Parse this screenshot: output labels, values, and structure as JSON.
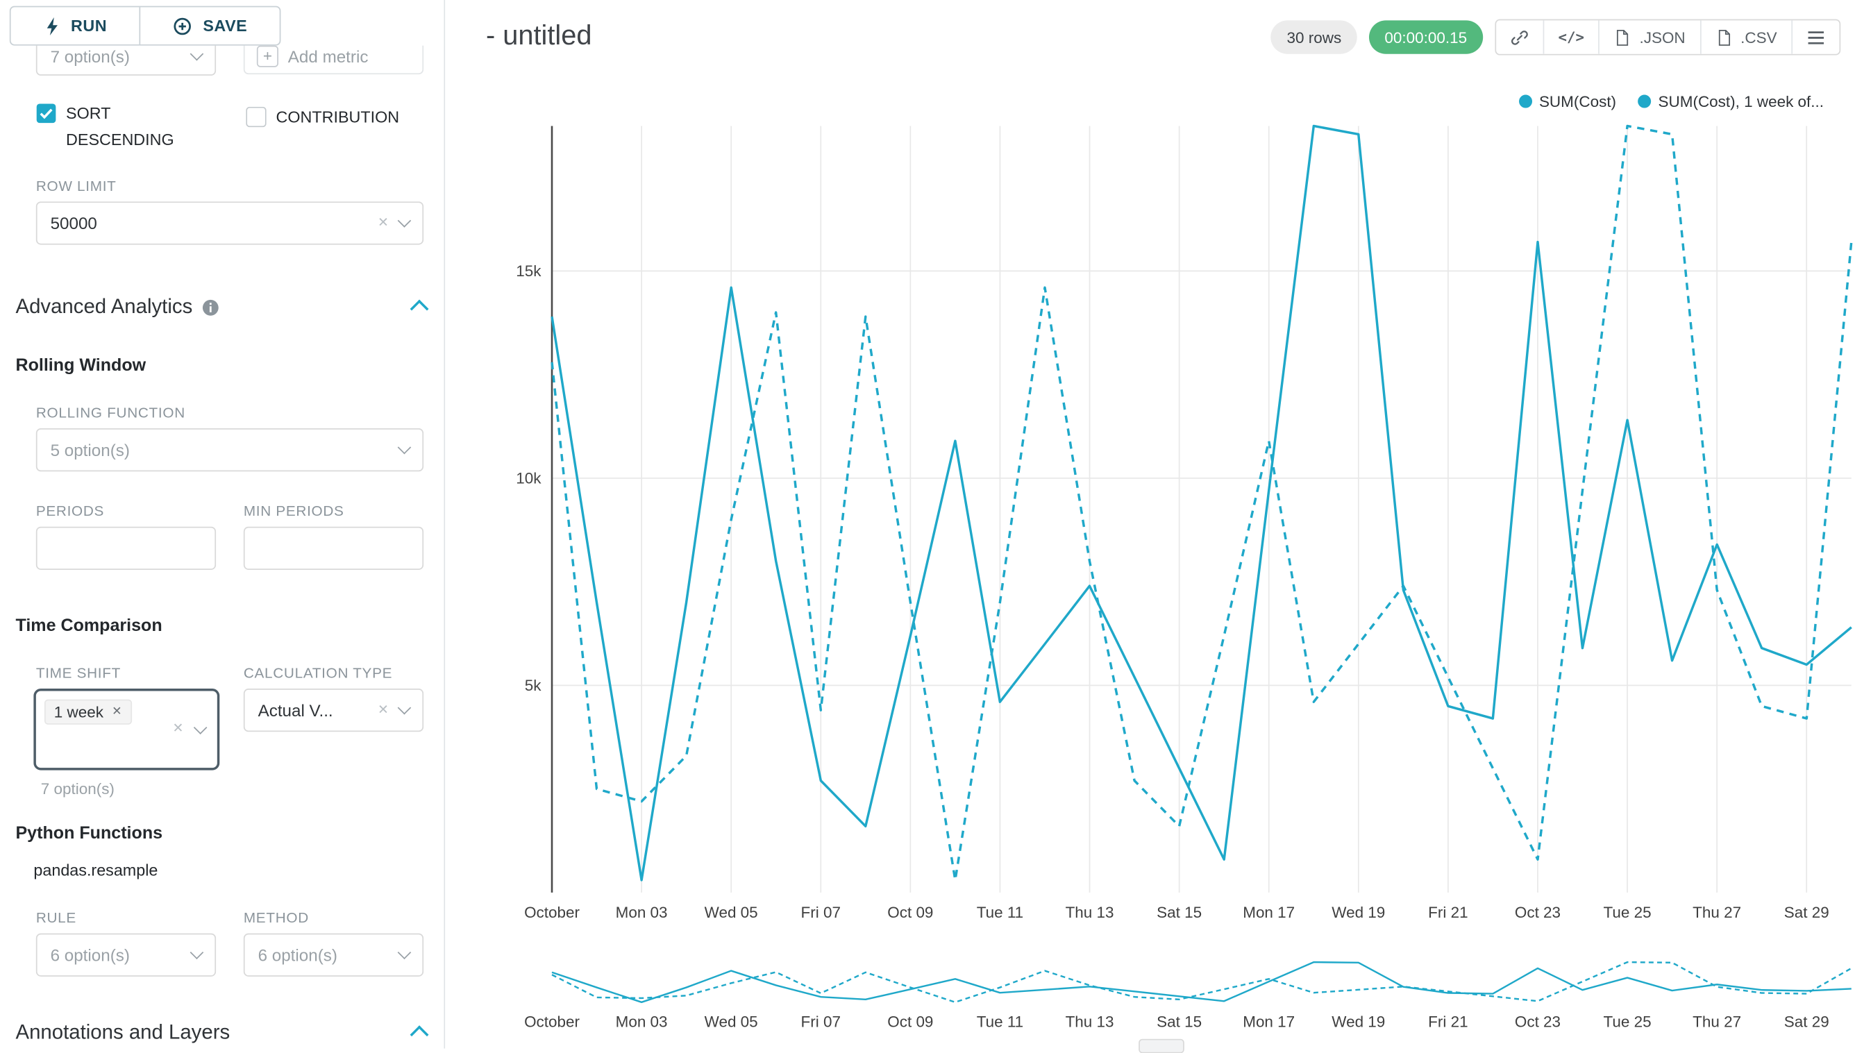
{
  "sidebar": {
    "run": "RUN",
    "save": "SAVE",
    "metric_select_placeholder": "7 option(s)",
    "add_metric_label": "Add metric",
    "sort_descending_label": "SORT DESCENDING",
    "contribution_label": "CONTRIBUTION",
    "row_limit_label": "ROW LIMIT",
    "row_limit_value": "50000",
    "advanced_analytics_title": "Advanced Analytics",
    "rolling_window_title": "Rolling Window",
    "rolling_function_label": "ROLLING FUNCTION",
    "rolling_function_placeholder": "5 option(s)",
    "periods_label": "PERIODS",
    "min_periods_label": "MIN PERIODS",
    "time_comparison_title": "Time Comparison",
    "time_shift_label": "TIME SHIFT",
    "time_shift_tag": "1 week",
    "time_shift_hint": "7 option(s)",
    "calculation_type_label": "CALCULATION TYPE",
    "calculation_type_value": "Actual V...",
    "python_functions_title": "Python Functions",
    "pandas_resample": "pandas.resample",
    "rule_label": "RULE",
    "rule_placeholder": "6 option(s)",
    "method_label": "METHOD",
    "method_placeholder": "6 option(s)",
    "annotations_title": "Annotations and Layers"
  },
  "header": {
    "title": "- untitled",
    "rows_badge": "30 rows",
    "timer_badge": "00:00:00.15",
    "json_label": ".JSON",
    "csv_label": ".CSV"
  },
  "chart_data": {
    "type": "line",
    "title": "- untitled",
    "x_unit": "day (October, daily points)",
    "x_count": 30,
    "x_tick_labels": [
      "October",
      "Mon 03",
      "Wed 05",
      "Fri 07",
      "Oct 09",
      "Tue 11",
      "Thu 13",
      "Sat 15",
      "Mon 17",
      "Wed 19",
      "Fri 21",
      "Oct 23",
      "Tue 25",
      "Thu 27",
      "Sat 29"
    ],
    "x_tick_index": [
      0,
      2,
      4,
      6,
      8,
      10,
      12,
      14,
      16,
      18,
      20,
      22,
      24,
      26,
      28
    ],
    "y_tick_labels": [
      "5k",
      "10k",
      "15k"
    ],
    "y_tick_values": [
      5000,
      10000,
      15000
    ],
    "y_min": 0,
    "y_max": 18500,
    "grid": true,
    "legend_position": "top-right",
    "series_color": "#1FA8C9",
    "mini_chart": true,
    "series": [
      {
        "name": "SUM(Cost)",
        "legend_label": "SUM(Cost)",
        "line_style": "solid",
        "values": [
          13900,
          7000,
          300,
          7000,
          14600,
          8000,
          2700,
          1600,
          6200,
          10900,
          4600,
          6000,
          7400,
          5200,
          3000,
          800,
          9700,
          18500,
          18300,
          7300,
          4500,
          4200,
          15700,
          5900,
          11400,
          5600,
          8400,
          5900,
          5500,
          6400
        ]
      },
      {
        "name": "SUM(Cost), 1 week of...",
        "legend_label": "SUM(Cost), 1 week of...",
        "line_style": "dashed",
        "values": [
          12800,
          2500,
          2200,
          3300,
          9000,
          14000,
          4400,
          13900,
          7000,
          300,
          7000,
          14600,
          8000,
          2700,
          1600,
          6200,
          10900,
          4600,
          6000,
          7400,
          5200,
          3000,
          800,
          9700,
          18500,
          18300,
          7300,
          4500,
          4200,
          15700
        ]
      }
    ]
  }
}
